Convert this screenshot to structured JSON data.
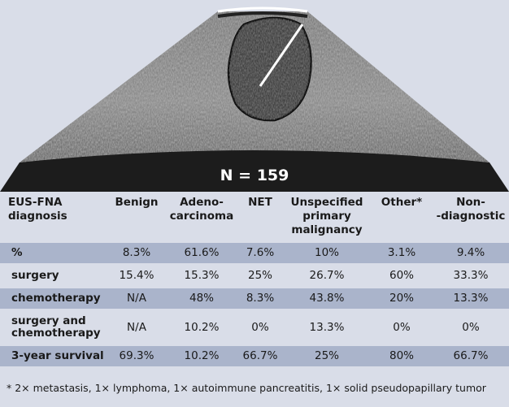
{
  "image": {
    "label": "N = 159"
  },
  "table": {
    "headers": [
      [
        "EUS-FNA",
        "diagnosis"
      ],
      [
        "Benign"
      ],
      [
        "Adeno-",
        "carcinoma"
      ],
      [
        "NET"
      ],
      [
        "Unspecified",
        "primary",
        "malignancy"
      ],
      [
        "Other*"
      ],
      [
        "Non-",
        "-diagnostic"
      ]
    ],
    "rows": [
      {
        "label": [
          "%"
        ],
        "cells": [
          "8.3%",
          "61.6%",
          "7.6%",
          "10%",
          "3.1%",
          "9.4%"
        ],
        "shaded": true
      },
      {
        "label": [
          "surgery"
        ],
        "cells": [
          "15.4%",
          "15.3%",
          "25%",
          "26.7%",
          "60%",
          "33.3%"
        ],
        "shaded": false
      },
      {
        "label": [
          "chemotherapy"
        ],
        "cells": [
          "N/A",
          "48%",
          "8.3%",
          "43.8%",
          "20%",
          "13.3%"
        ],
        "shaded": true
      },
      {
        "label": [
          "surgery and",
          "chemotherapy"
        ],
        "cells": [
          "N/A",
          "10.2%",
          "0%",
          "13.3%",
          "0%",
          "0%"
        ],
        "shaded": false
      },
      {
        "label": [
          "3-year survival"
        ],
        "cells": [
          "69.3%",
          "10.2%",
          "66.7%",
          "25%",
          "80%",
          "66.7%"
        ],
        "shaded": true
      }
    ]
  },
  "footnote": "* 2× metastasis, 1× lymphoma, 1× autoimmune pancreatitis, 1× solid pseudopapillary tumor",
  "colors": {
    "background": "#d9dde8",
    "row_shade": "#aab4cb",
    "ultrasound_dark": "#1c1c1c"
  }
}
